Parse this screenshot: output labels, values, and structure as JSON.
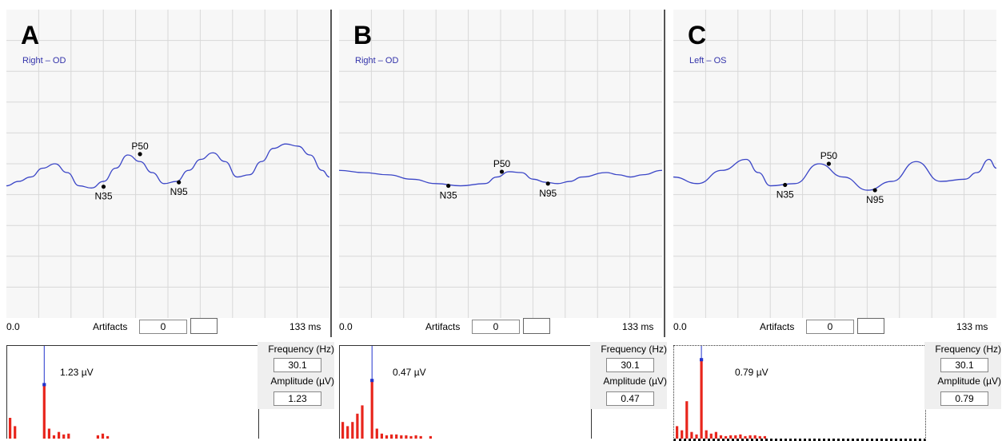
{
  "panels": [
    {
      "letter": "A",
      "eye": "Right – OD",
      "x_start": "0.0",
      "x_end": "133 ms",
      "artifacts_label": "Artifacts",
      "artifacts_value": "0",
      "amplitude_display": "1.23 µV",
      "frequency_label": "Frequency (Hz)",
      "frequency_value": "30.1",
      "amplitude_label": "Amplitude (µV)",
      "amplitude_value": "1.23"
    },
    {
      "letter": "B",
      "eye": "Right – OD",
      "x_start": "0.0",
      "x_end": "133 ms",
      "artifacts_label": "Artifacts",
      "artifacts_value": "0",
      "amplitude_display": "0.47 µV",
      "frequency_label": "Frequency (Hz)",
      "frequency_value": "30.1",
      "amplitude_label": "Amplitude (µV)",
      "amplitude_value": "0.47"
    },
    {
      "letter": "C",
      "eye": "Left – OS",
      "x_start": "0.0",
      "x_end": "133 ms",
      "artifacts_label": "Artifacts",
      "artifacts_value": "0",
      "amplitude_display": "0.79 µV",
      "frequency_label": "Frequency (Hz)",
      "frequency_value": "30.1",
      "amplitude_label": "Amplitude (µV)",
      "amplitude_value": "0.79"
    }
  ],
  "chart_data": [
    {
      "type": "line",
      "panel": "A",
      "xlim": [
        0,
        133
      ],
      "x_unit": "ms",
      "series": [
        {
          "x": [
            0,
            5,
            10,
            15,
            20,
            25,
            30,
            35,
            40,
            45,
            50,
            55,
            60,
            65,
            70,
            75,
            80,
            85,
            90,
            95,
            100,
            105,
            110,
            115,
            120,
            125,
            130,
            133
          ],
          "y": [
            0.0,
            0.1,
            0.2,
            0.4,
            0.5,
            0.3,
            0.0,
            -0.05,
            0.1,
            0.4,
            0.7,
            0.55,
            0.3,
            0.05,
            0.1,
            0.35,
            0.6,
            0.75,
            0.55,
            0.2,
            0.25,
            0.55,
            0.85,
            0.95,
            0.9,
            0.7,
            0.35,
            0.2
          ]
        }
      ],
      "markers": [
        {
          "label": "N35",
          "x": 40,
          "y": -0.02
        },
        {
          "label": "P50",
          "x": 55,
          "y": 0.72
        },
        {
          "label": "N95",
          "x": 71,
          "y": 0.08
        }
      ],
      "ylim": [
        -3,
        4
      ],
      "grid": true,
      "spectrum": {
        "values": [
          0.25,
          0.15,
          0.0,
          0.0,
          0.0,
          0.0,
          0.0,
          0.65,
          0.12,
          0.04,
          0.08,
          0.05,
          0.06,
          0.0,
          0.0,
          0.0,
          0.0,
          0.0,
          0.04,
          0.06,
          0.03
        ],
        "highlight_index": 7
      }
    },
    {
      "type": "line",
      "panel": "B",
      "xlim": [
        0,
        133
      ],
      "x_unit": "ms",
      "series": [
        {
          "x": [
            0,
            10,
            20,
            30,
            40,
            50,
            60,
            65,
            70,
            75,
            80,
            85,
            90,
            95,
            100,
            110,
            115,
            120,
            125,
            133
          ],
          "y": [
            0.35,
            0.3,
            0.25,
            0.15,
            0.05,
            0.0,
            0.05,
            0.2,
            0.32,
            0.3,
            0.15,
            0.08,
            0.05,
            0.1,
            0.2,
            0.3,
            0.25,
            0.2,
            0.25,
            0.35
          ]
        }
      ],
      "markers": [
        {
          "label": "N35",
          "x": 45,
          "y": 0.0
        },
        {
          "label": "P50",
          "x": 67,
          "y": 0.32
        },
        {
          "label": "N95",
          "x": 86,
          "y": 0.05
        }
      ],
      "ylim": [
        -3,
        4
      ],
      "grid": true,
      "spectrum": {
        "values": [
          0.2,
          0.15,
          0.2,
          0.3,
          0.4,
          0.0,
          0.7,
          0.12,
          0.06,
          0.04,
          0.05,
          0.05,
          0.04,
          0.04,
          0.03,
          0.04,
          0.03,
          0.0,
          0.03
        ],
        "highlight_index": 6
      }
    },
    {
      "type": "line",
      "panel": "C",
      "xlim": [
        0,
        133
      ],
      "x_unit": "ms",
      "series": [
        {
          "x": [
            0,
            10,
            20,
            30,
            35,
            40,
            50,
            60,
            70,
            80,
            90,
            100,
            110,
            120,
            125,
            130,
            133
          ],
          "y": [
            0.2,
            0.05,
            0.35,
            0.6,
            0.3,
            0.0,
            0.05,
            0.5,
            0.2,
            -0.1,
            0.1,
            0.55,
            0.1,
            0.15,
            0.3,
            0.6,
            0.4
          ]
        }
      ],
      "markers": [
        {
          "label": "N35",
          "x": 46,
          "y": 0.02
        },
        {
          "label": "P50",
          "x": 64,
          "y": 0.5
        },
        {
          "label": "N95",
          "x": 83,
          "y": -0.1
        }
      ],
      "ylim": [
        -3,
        4
      ],
      "grid": true,
      "spectrum": {
        "values": [
          0.15,
          0.1,
          0.45,
          0.08,
          0.05,
          0.95,
          0.1,
          0.06,
          0.08,
          0.04,
          0.03,
          0.04,
          0.04,
          0.05,
          0.03,
          0.04,
          0.04,
          0.03,
          0.03
        ],
        "highlight_index": 5
      }
    }
  ],
  "colors": {
    "trace": "#3b46c7",
    "grid": "#d8d8d8",
    "spectrum_bar": "#e8251c",
    "spectrum_highlight": "#2233cc"
  }
}
